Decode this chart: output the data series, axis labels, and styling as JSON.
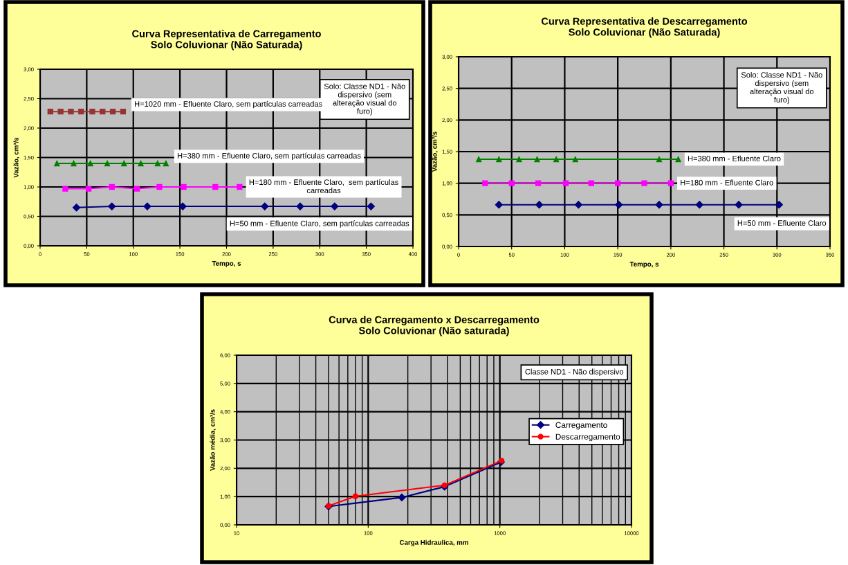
{
  "chart_data": [
    {
      "type": "line",
      "title": "Curva Representativa de Carregamento\nSolo Coluvionar (Não Saturada)",
      "xlabel": "Tempo, s",
      "ylabel": "Vazão, cm³/s",
      "xlim": [
        0,
        400
      ],
      "xticks": [
        0,
        50,
        100,
        150,
        200,
        250,
        300,
        350,
        400
      ],
      "ylim": [
        0,
        3
      ],
      "yticks": [
        {
          "value": 0,
          "label": "0,00"
        },
        {
          "value": 0.5,
          "label": "0,50"
        },
        {
          "value": 1,
          "label": "1,00"
        },
        {
          "value": 1.5,
          "label": "1,50"
        },
        {
          "value": 2,
          "label": "2,00"
        },
        {
          "value": 2.5,
          "label": "2,50"
        },
        {
          "value": 3,
          "label": "3,00"
        }
      ],
      "grid": true,
      "legend": false,
      "annotations": [
        "Solo: Classe ND1 - Não dispersivo (sem alteração visual do furo)"
      ],
      "series": [
        {
          "name": "H=1020 mm - Efluente Claro, sem partículas carreadas",
          "color": "#993333",
          "marker": "square",
          "x": [
            11,
            22,
            33,
            44,
            56,
            67,
            78,
            89
          ],
          "values": [
            2.28,
            2.28,
            2.28,
            2.28,
            2.28,
            2.28,
            2.28,
            2.28
          ]
        },
        {
          "name": "H=380 mm - Efluente Claro, sem partículas carreadas",
          "color": "#008000",
          "marker": "triangle",
          "x": [
            18,
            36,
            54,
            72,
            90,
            108,
            126,
            135
          ],
          "values": [
            1.4,
            1.4,
            1.4,
            1.4,
            1.4,
            1.4,
            1.4,
            1.4
          ]
        },
        {
          "name": "H=180 mm - Efluente Claro,  sem partículas carreadas",
          "color": "#ff00ff",
          "marker": "square",
          "x": [
            27,
            52,
            77,
            104,
            128,
            154,
            188,
            214
          ],
          "values": [
            0.97,
            0.97,
            1.0,
            0.97,
            1.0,
            1.0,
            1.0,
            1.0
          ]
        },
        {
          "name": "H=50 mm - Efluente Claro, sem partículas carreadas",
          "color": "#000080",
          "marker": "diamond",
          "x": [
            39,
            77,
            115,
            153,
            241,
            279,
            316,
            355
          ],
          "values": [
            0.65,
            0.67,
            0.67,
            0.67,
            0.67,
            0.67,
            0.67,
            0.67
          ]
        }
      ]
    },
    {
      "type": "line",
      "title": "Curva Representativa de Descarregamento\nSolo Coluvionar (Não Saturada)",
      "xlabel": "Tempo, s",
      "ylabel": "Vazão, cm³/s",
      "xlim": [
        0,
        350
      ],
      "xticks": [
        0,
        50,
        100,
        150,
        200,
        250,
        300,
        350
      ],
      "ylim": [
        0,
        3
      ],
      "yticks": [
        {
          "value": 0,
          "label": "0,00"
        },
        {
          "value": 0.5,
          "label": "0,50"
        },
        {
          "value": 1,
          "label": "1,00"
        },
        {
          "value": 1.5,
          "label": "1,50"
        },
        {
          "value": 2,
          "label": "2,00"
        },
        {
          "value": 2.5,
          "label": "2,50"
        },
        {
          "value": 3,
          "label": "3,00"
        }
      ],
      "grid": true,
      "legend": false,
      "annotations": [
        "Solo: Classe ND1 - Não dispersivo (sem alteração visual do furo)"
      ],
      "series": [
        {
          "name": "H=380 mm - Efluente Claro",
          "color": "#008000",
          "marker": "triangle",
          "x": [
            19,
            38,
            57,
            74,
            92,
            110,
            189,
            207
          ],
          "values": [
            1.38,
            1.38,
            1.38,
            1.38,
            1.38,
            1.38,
            1.38,
            1.38
          ]
        },
        {
          "name": "H=180 mm - Efluente Claro",
          "color": "#ff00ff",
          "marker": "square",
          "x": [
            25,
            50,
            75,
            101,
            125,
            150,
            175,
            200
          ],
          "values": [
            1.0,
            1.0,
            1.0,
            1.0,
            1.0,
            1.0,
            1.0,
            1.0
          ]
        },
        {
          "name": "H=50 mm - Efluente Claro",
          "color": "#000080",
          "marker": "diamond",
          "x": [
            38,
            76,
            113,
            151,
            189,
            227,
            264,
            302
          ],
          "values": [
            0.66,
            0.66,
            0.66,
            0.66,
            0.66,
            0.66,
            0.66,
            0.66
          ]
        }
      ]
    },
    {
      "type": "line",
      "title": "Curva de Carregamento x Descarregamento\nSolo Coluvionar (Não saturada)",
      "xlabel": "Carga Hidraulica, mm",
      "ylabel": "Vazão média, cm³/s",
      "log": "x",
      "xlim": [
        10,
        10000
      ],
      "xticks": [
        10,
        100,
        1000,
        10000
      ],
      "ylim": [
        0,
        6
      ],
      "yticks": [
        {
          "value": 0,
          "label": "0,00"
        },
        {
          "value": 1,
          "label": "1,00"
        },
        {
          "value": 2,
          "label": "2,00"
        },
        {
          "value": 3,
          "label": "3,00"
        },
        {
          "value": 4,
          "label": "4,00"
        },
        {
          "value": 5,
          "label": "5,00"
        },
        {
          "value": 6,
          "label": "6,00"
        }
      ],
      "grid": true,
      "legend": "right",
      "annotations": [
        "Classe ND1 - Não dispersivo"
      ],
      "series": [
        {
          "name": "Carregamento",
          "color": "#000080",
          "marker": "diamond",
          "x": [
            50,
            180,
            380,
            1020
          ],
          "values": [
            0.65,
            0.97,
            1.35,
            2.22
          ]
        },
        {
          "name": "Descarregamento",
          "color": "#ff0000",
          "marker": "circle",
          "x": [
            50,
            80,
            380,
            1030
          ],
          "values": [
            0.67,
            1.01,
            1.4,
            2.27
          ]
        }
      ]
    }
  ]
}
